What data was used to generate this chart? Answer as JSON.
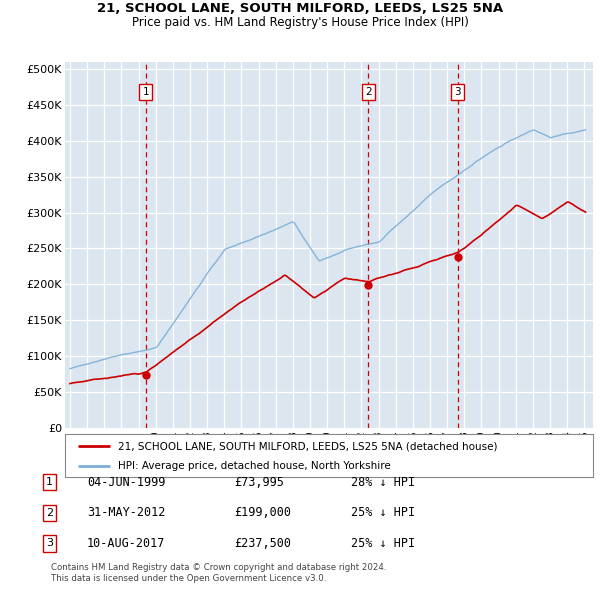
{
  "title1": "21, SCHOOL LANE, SOUTH MILFORD, LEEDS, LS25 5NA",
  "title2": "Price paid vs. HM Land Registry's House Price Index (HPI)",
  "ylabel_ticks": [
    "£0",
    "£50K",
    "£100K",
    "£150K",
    "£200K",
    "£250K",
    "£300K",
    "£350K",
    "£400K",
    "£450K",
    "£500K"
  ],
  "ytick_vals": [
    0,
    50000,
    100000,
    150000,
    200000,
    250000,
    300000,
    350000,
    400000,
    450000,
    500000
  ],
  "ylim": [
    0,
    510000
  ],
  "xlim_start": 1994.7,
  "xlim_end": 2025.5,
  "sale_dates": [
    1999.42,
    2012.41,
    2017.61
  ],
  "sale_prices": [
    73995,
    199000,
    237500
  ],
  "sale_labels": [
    "1",
    "2",
    "3"
  ],
  "red_line_color": "#cc0000",
  "blue_line_color": "#7aaed6",
  "dashed_color": "#cc0000",
  "legend_line1": "21, SCHOOL LANE, SOUTH MILFORD, LEEDS, LS25 5NA (detached house)",
  "legend_line2": "HPI: Average price, detached house, North Yorkshire",
  "table_data": [
    [
      "1",
      "04-JUN-1999",
      "£73,995",
      "28% ↓ HPI"
    ],
    [
      "2",
      "31-MAY-2012",
      "£199,000",
      "25% ↓ HPI"
    ],
    [
      "3",
      "10-AUG-2017",
      "£237,500",
      "25% ↓ HPI"
    ]
  ],
  "footnote1": "Contains HM Land Registry data © Crown copyright and database right 2024.",
  "footnote2": "This data is licensed under the Open Government Licence v3.0.",
  "bg_color": "#dce6f1"
}
